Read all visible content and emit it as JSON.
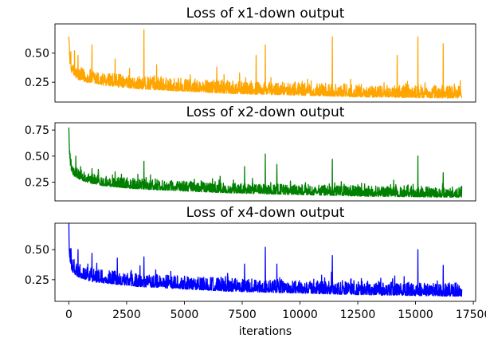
{
  "chart_data": [
    {
      "type": "line",
      "title": "Loss of x1-down output",
      "color": "#FFA500",
      "xlim": [
        -600,
        17600
      ],
      "ylim": [
        0.08,
        0.75
      ],
      "yticks": [
        0.25,
        0.5
      ],
      "yticklabels": [
        "0.25",
        "0.50"
      ],
      "xlabel": "",
      "series": [
        {
          "x": [
            0,
            20,
            50,
            100,
            200,
            400,
            700,
            1000,
            1500,
            2000,
            3000,
            4000,
            5000,
            6000,
            7000,
            8000,
            9000,
            10000,
            11000,
            12000,
            13000,
            14000,
            15000,
            16000,
            17000
          ],
          "y": [
            0.66,
            0.5,
            0.42,
            0.36,
            0.32,
            0.29,
            0.27,
            0.26,
            0.24,
            0.23,
            0.21,
            0.2,
            0.19,
            0.18,
            0.17,
            0.165,
            0.16,
            0.155,
            0.15,
            0.145,
            0.14,
            0.138,
            0.135,
            0.132,
            0.13
          ],
          "noise": 0.05,
          "spikes": [
            [
              250,
              0.52
            ],
            [
              400,
              0.48
            ],
            [
              1000,
              0.57
            ],
            [
              2000,
              0.45
            ],
            [
              3250,
              0.7
            ],
            [
              3800,
              0.4
            ],
            [
              6400,
              0.38
            ],
            [
              8100,
              0.48
            ],
            [
              8500,
              0.57
            ],
            [
              11400,
              0.64
            ],
            [
              14200,
              0.48
            ],
            [
              15100,
              0.64
            ],
            [
              16200,
              0.58
            ]
          ]
        }
      ]
    },
    {
      "type": "line",
      "title": "Loss of x2-down output",
      "color": "#008000",
      "xlim": [
        -600,
        17600
      ],
      "ylim": [
        0.07,
        0.82
      ],
      "yticks": [
        0.25,
        0.5,
        0.75
      ],
      "yticklabels": [
        "0.25",
        "0.50",
        "0.75"
      ],
      "xlabel": "",
      "series": [
        {
          "x": [
            0,
            20,
            50,
            100,
            200,
            400,
            700,
            1000,
            1500,
            2000,
            3000,
            4000,
            5000,
            6000,
            7000,
            8000,
            9000,
            10000,
            11000,
            12000,
            13000,
            14000,
            15000,
            16000,
            17000
          ],
          "y": [
            0.78,
            0.55,
            0.45,
            0.38,
            0.33,
            0.3,
            0.27,
            0.25,
            0.23,
            0.22,
            0.2,
            0.19,
            0.18,
            0.17,
            0.16,
            0.155,
            0.15,
            0.145,
            0.14,
            0.135,
            0.13,
            0.128,
            0.125,
            0.122,
            0.12
          ],
          "noise": 0.045,
          "spikes": [
            [
              300,
              0.5
            ],
            [
              1000,
              0.38
            ],
            [
              2000,
              0.35
            ],
            [
              3250,
              0.45
            ],
            [
              7600,
              0.4
            ],
            [
              8500,
              0.52
            ],
            [
              9000,
              0.42
            ],
            [
              11400,
              0.47
            ],
            [
              15100,
              0.5
            ],
            [
              16200,
              0.34
            ]
          ]
        }
      ]
    },
    {
      "type": "line",
      "title": "Loss of x4-down output",
      "color": "#0000FF",
      "xlim": [
        -600,
        17600
      ],
      "ylim": [
        0.07,
        0.72
      ],
      "yticks": [
        0.25,
        0.5
      ],
      "yticklabels": [
        "0.25",
        "0.50"
      ],
      "xlabel": "iterations",
      "xticks": [
        0,
        2500,
        5000,
        7500,
        10000,
        12500,
        15000,
        17500
      ],
      "xticklabels": [
        "0",
        "2500",
        "5000",
        "7500",
        "10000",
        "12500",
        "15000",
        "17500"
      ],
      "series": [
        {
          "x": [
            0,
            20,
            50,
            100,
            200,
            400,
            700,
            1000,
            1500,
            2000,
            3000,
            4000,
            5000,
            6000,
            7000,
            8000,
            9000,
            10000,
            11000,
            12000,
            13000,
            14000,
            15000,
            16000,
            17000
          ],
          "y": [
            0.68,
            0.5,
            0.42,
            0.36,
            0.32,
            0.29,
            0.27,
            0.25,
            0.24,
            0.23,
            0.21,
            0.2,
            0.19,
            0.18,
            0.17,
            0.165,
            0.16,
            0.155,
            0.15,
            0.145,
            0.14,
            0.138,
            0.135,
            0.132,
            0.13
          ],
          "noise": 0.05,
          "spikes": [
            [
              400,
              0.5
            ],
            [
              1000,
              0.47
            ],
            [
              2100,
              0.43
            ],
            [
              3250,
              0.44
            ],
            [
              7600,
              0.38
            ],
            [
              8500,
              0.52
            ],
            [
              9000,
              0.38
            ],
            [
              11400,
              0.45
            ],
            [
              15100,
              0.5
            ],
            [
              16200,
              0.37
            ]
          ]
        }
      ]
    }
  ]
}
